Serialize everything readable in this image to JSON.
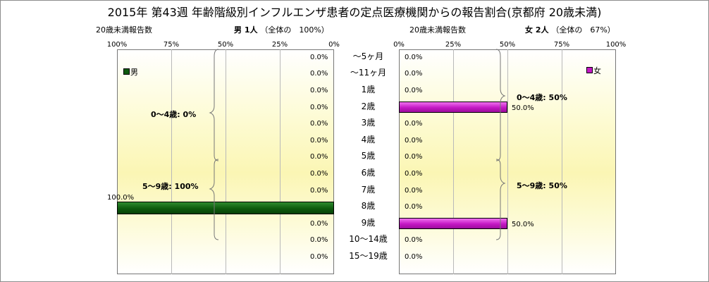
{
  "title": "2015年 第43週 年齢階級別インフルエンザ患者の定点医療機関からの報告割合(京都府 20歳未満)",
  "male_header": {
    "count_label": "20歳未満報告数",
    "sex": "男",
    "count": "1人",
    "share": "（全体の　100%）"
  },
  "female_header": {
    "count_label": "20歳未満報告数",
    "sex": "女",
    "count": "2人",
    "share": "（全体の　67%）"
  },
  "chart_data": {
    "type": "bar",
    "categories": [
      "～5ヶ月",
      "～11ヶ月",
      "1歳",
      "2歳",
      "3歳",
      "4歳",
      "5歳",
      "6歳",
      "7歳",
      "8歳",
      "9歳",
      "10～14歳",
      "15～19歳"
    ],
    "series": [
      {
        "name": "男",
        "color": "#0e5a0e",
        "values": [
          0,
          0,
          0,
          0,
          0,
          0,
          0,
          0,
          0,
          100,
          0,
          null,
          null
        ],
        "labels": [
          "0.0%",
          "0.0%",
          "0.0%",
          "0.0%",
          "0.0%",
          "0.0%",
          "0.0%",
          "0.0%",
          "0.0%",
          "100.0%",
          "0.0%",
          "0.0%",
          "0.0%"
        ]
      },
      {
        "name": "女",
        "color": "#c418c4",
        "values": [
          0,
          0,
          0,
          50,
          0,
          0,
          0,
          0,
          0,
          0,
          50,
          0,
          0
        ],
        "labels": [
          "0.0%",
          "0.0%",
          "0.0%",
          "50.0%",
          "0.0%",
          "0.0%",
          "0.0%",
          "0.0%",
          "0.0%",
          "0.0%",
          "50.0%",
          "0.0%",
          "0.0%"
        ]
      }
    ],
    "male_axis_ticks": [
      "100%",
      "75%",
      "50%",
      "25%",
      "0%"
    ],
    "female_axis_ticks": [
      "0%",
      "25%",
      "50%",
      "75%",
      "100%"
    ],
    "xlim": [
      0,
      100
    ],
    "grid": true,
    "group_annotations": {
      "male": [
        "0～4歳: 0%",
        "5～9歳: 100%"
      ],
      "female": [
        "0～4歳: 50%",
        "5～9歳: 50%"
      ]
    }
  }
}
